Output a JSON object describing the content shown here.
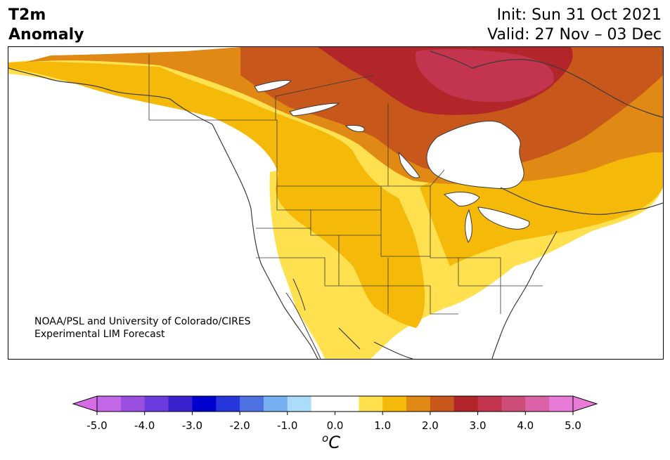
{
  "header": {
    "title_line1": "T2m",
    "title_line2": "Anomaly",
    "init_text": "Init: Sun 31 Oct 2021",
    "valid_text": "Valid: 27 Nov – 03 Dec"
  },
  "credit": {
    "line1": "NOAA/PSL and University of Colorado/CIRES",
    "line2": "Experimental LIM Forecast"
  },
  "colorbar": {
    "unit_base": "C",
    "unit_sup": "o",
    "tick_labels": [
      "-5.0",
      "-4.0",
      "-3.0",
      "-2.0",
      "-1.0",
      "0.0",
      "1.0",
      "2.0",
      "3.0",
      "4.0",
      "5.0"
    ],
    "under_color": "#d56ce6",
    "over_color": "#e87ad8",
    "bins": [
      {
        "from": -5.0,
        "to": -4.5,
        "color": "#c267e6"
      },
      {
        "from": -4.5,
        "to": -4.0,
        "color": "#9b4fe0"
      },
      {
        "from": -4.0,
        "to": -3.5,
        "color": "#6a3bde"
      },
      {
        "from": -3.5,
        "to": -3.0,
        "color": "#3a22cf"
      },
      {
        "from": -3.0,
        "to": -2.5,
        "color": "#0000cf"
      },
      {
        "from": -2.5,
        "to": -2.0,
        "color": "#2636dd"
      },
      {
        "from": -2.0,
        "to": -1.5,
        "color": "#4f72e3"
      },
      {
        "from": -1.5,
        "to": -1.0,
        "color": "#77b0f0"
      },
      {
        "from": -1.0,
        "to": -0.5,
        "color": "#acdcfb"
      },
      {
        "from": -0.5,
        "to": 0.5,
        "color": "#ffffff"
      },
      {
        "from": 0.5,
        "to": 1.0,
        "color": "#ffe150"
      },
      {
        "from": 1.0,
        "to": 1.5,
        "color": "#f5b90a"
      },
      {
        "from": 1.5,
        "to": 2.0,
        "color": "#e08914"
      },
      {
        "from": 2.0,
        "to": 2.5,
        "color": "#c8571c"
      },
      {
        "from": 2.5,
        "to": 3.0,
        "color": "#b2262a"
      },
      {
        "from": 3.0,
        "to": 3.5,
        "color": "#c3354f"
      },
      {
        "from": 3.5,
        "to": 4.0,
        "color": "#cc4e78"
      },
      {
        "from": 4.0,
        "to": 4.5,
        "color": "#dc62a8"
      },
      {
        "from": 4.5,
        "to": 5.0,
        "color": "#e87ad8"
      }
    ]
  },
  "map": {
    "colors": {
      "ocean": "#ffffff",
      "band_0_5": "#ffe150",
      "band_1_0": "#f5b90a",
      "band_1_5": "#e08914",
      "band_2_0": "#c8571c",
      "band_2_5": "#b2262a",
      "band_3_0": "#c3354f",
      "coast": "#3a3a3a",
      "border": "#3a3a3a",
      "water": "#ffffff"
    }
  }
}
